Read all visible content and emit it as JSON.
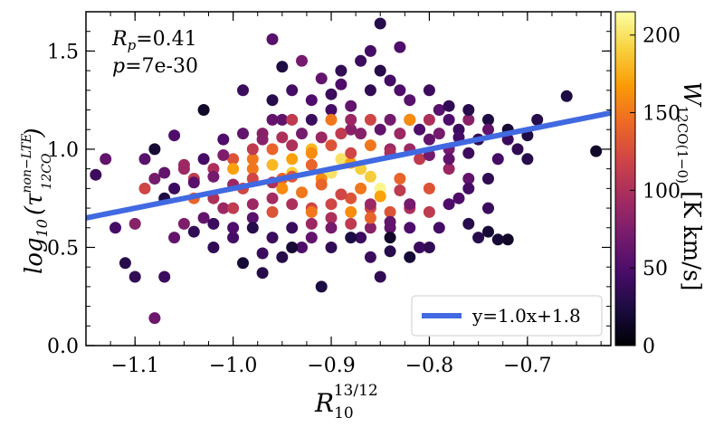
{
  "chart_data": {
    "type": "scatter",
    "xlabel": "R_10^{13/12}",
    "xlabel_main": "R",
    "xlabel_sub": "10",
    "xlabel_sup": "13/12",
    "ylabel": "log10(tau_12CO^non-LTE)",
    "ylabel_prefix": "log",
    "ylabel_prefix_sub": "10",
    "ylabel_tau": "τ",
    "ylabel_sup": "non−LTE",
    "ylabel_sub": "12CO",
    "xlim": [
      -1.15,
      -0.615
    ],
    "ylim": [
      0.0,
      1.7
    ],
    "xticks": [
      -1.1,
      -1.0,
      -0.9,
      -0.8,
      -0.7
    ],
    "xtick_labels": [
      "−1.1",
      "−1.0",
      "−0.9",
      "−0.8",
      "−0.7"
    ],
    "yticks": [
      0.0,
      0.5,
      1.0,
      1.5
    ],
    "ytick_labels": [
      "0.0",
      "0.5",
      "1.0",
      "1.5"
    ],
    "stats": {
      "rp_label": "R",
      "rp_sub": "p",
      "rp_value": "=0.41",
      "p_label": "p",
      "p_value": "=7e-30"
    },
    "fit": {
      "slope": 1.0,
      "intercept": 1.8,
      "label": "y=1.0x+1.8",
      "color": "#4169e1"
    },
    "colorbar": {
      "label_main": "W",
      "label_sub": "12CO(1−0)",
      "label_unit": "[K km/s]",
      "range": [
        0,
        215
      ],
      "ticks": [
        0,
        50,
        100,
        150,
        200
      ],
      "tick_labels": [
        "0",
        "50",
        "100",
        "150",
        "200"
      ],
      "colormap": [
        "#000004",
        "#1b0c41",
        "#4a0c6b",
        "#781c6d",
        "#a52c60",
        "#cf4446",
        "#ed6925",
        "#fb9b06",
        "#f7d13d",
        "#fcffa4"
      ]
    },
    "points": [
      [
        -1.14,
        0.87,
        40
      ],
      [
        -1.13,
        0.95,
        60
      ],
      [
        -1.12,
        0.6,
        45
      ],
      [
        -1.11,
        0.42,
        30
      ],
      [
        -1.1,
        0.35,
        35
      ],
      [
        -1.1,
        0.62,
        80
      ],
      [
        -1.09,
        0.95,
        55
      ],
      [
        -1.08,
        0.14,
        65
      ],
      [
        -1.09,
        0.8,
        120
      ],
      [
        -1.08,
        0.85,
        70
      ],
      [
        -1.08,
        1.0,
        20
      ],
      [
        -1.07,
        0.75,
        25
      ],
      [
        -1.07,
        0.35,
        40
      ],
      [
        -1.06,
        0.55,
        60
      ],
      [
        -1.06,
        1.07,
        50
      ],
      [
        -1.05,
        0.9,
        90
      ],
      [
        -1.05,
        0.62,
        75
      ],
      [
        -1.04,
        0.85,
        110
      ],
      [
        -1.04,
        0.75,
        140
      ],
      [
        -1.03,
        0.65,
        60
      ],
      [
        -1.03,
        1.2,
        15
      ],
      [
        -1.02,
        0.5,
        35
      ],
      [
        -1.02,
        0.9,
        100
      ],
      [
        -1.01,
        0.7,
        90
      ],
      [
        -1.01,
        1.05,
        50
      ],
      [
        -1.0,
        0.95,
        130
      ],
      [
        -1.0,
        0.55,
        45
      ],
      [
        -0.99,
        0.8,
        120
      ],
      [
        -0.99,
        1.3,
        40
      ],
      [
        -0.98,
        0.65,
        55
      ],
      [
        -0.98,
        0.9,
        150
      ],
      [
        -0.97,
        0.37,
        30
      ],
      [
        -0.97,
        1.05,
        80
      ],
      [
        -0.96,
        1.56,
        55
      ],
      [
        -0.96,
        0.75,
        95
      ],
      [
        -0.95,
        0.85,
        140
      ],
      [
        -0.95,
        1.15,
        60
      ],
      [
        -0.94,
        0.6,
        40
      ],
      [
        -0.94,
        0.95,
        170
      ],
      [
        -0.93,
        0.5,
        50
      ],
      [
        -0.93,
        1.45,
        70
      ],
      [
        -0.92,
        0.7,
        120
      ],
      [
        -0.92,
        1.0,
        180
      ],
      [
        -0.91,
        0.3,
        25
      ],
      [
        -0.91,
        0.85,
        160
      ],
      [
        -0.9,
        1.2,
        45
      ],
      [
        -0.9,
        0.65,
        100
      ],
      [
        -0.89,
        0.95,
        200
      ],
      [
        -0.89,
        1.4,
        35
      ],
      [
        -0.88,
        0.75,
        130
      ],
      [
        -0.88,
        1.1,
        80
      ],
      [
        -0.87,
        0.55,
        40
      ],
      [
        -0.87,
        0.9,
        190
      ],
      [
        -0.86,
        1.5,
        45
      ],
      [
        -0.86,
        0.7,
        120
      ],
      [
        -0.85,
        0.8,
        210
      ],
      [
        -0.85,
        1.64,
        30
      ],
      [
        -0.85,
        0.35,
        35
      ],
      [
        -0.84,
        1.0,
        90
      ],
      [
        -0.84,
        0.6,
        60
      ],
      [
        -0.83,
        1.3,
        50
      ],
      [
        -0.83,
        0.85,
        140
      ],
      [
        -0.82,
        0.7,
        100
      ],
      [
        -0.82,
        1.15,
        70
      ],
      [
        -0.81,
        0.95,
        110
      ],
      [
        -0.81,
        0.5,
        40
      ],
      [
        -0.8,
        1.05,
        60
      ],
      [
        -0.8,
        0.8,
        130
      ],
      [
        -0.79,
        0.6,
        45
      ],
      [
        -0.79,
        1.2,
        55
      ],
      [
        -0.78,
        0.9,
        90
      ],
      [
        -0.78,
        1.0,
        70
      ],
      [
        -0.77,
        0.75,
        50
      ],
      [
        -0.77,
        1.1,
        40
      ],
      [
        -0.76,
        0.85,
        60
      ],
      [
        -0.75,
        1.05,
        35
      ],
      [
        -0.75,
        0.55,
        30
      ],
      [
        -0.74,
        0.7,
        40
      ],
      [
        -0.74,
        1.15,
        25
      ],
      [
        -0.73,
        0.95,
        45
      ],
      [
        -0.72,
        1.1,
        20
      ],
      [
        -0.71,
        1.0,
        35
      ],
      [
        -0.7,
        1.07,
        25
      ],
      [
        -0.69,
        1.15,
        30
      ],
      [
        -0.66,
        1.27,
        25
      ],
      [
        -0.63,
        0.99,
        15
      ],
      [
        -0.98,
        0.6,
        30
      ],
      [
        -0.96,
        0.55,
        40
      ],
      [
        -0.94,
        0.5,
        20
      ],
      [
        -0.92,
        0.55,
        60
      ],
      [
        -0.9,
        0.5,
        35
      ],
      [
        -0.88,
        0.55,
        25
      ],
      [
        -0.86,
        0.6,
        80
      ],
      [
        -0.84,
        0.55,
        15
      ],
      [
        -0.96,
        1.15,
        60
      ],
      [
        -0.94,
        1.15,
        110
      ],
      [
        -0.92,
        1.15,
        40
      ],
      [
        -0.9,
        1.15,
        150
      ],
      [
        -0.88,
        1.15,
        90
      ],
      [
        -0.86,
        1.15,
        120
      ],
      [
        -0.84,
        1.15,
        70
      ],
      [
        -0.82,
        1.15,
        160
      ],
      [
        -0.8,
        1.15,
        100
      ],
      [
        -0.78,
        1.15,
        50
      ],
      [
        -0.76,
        1.15,
        80
      ],
      [
        -0.74,
        1.1,
        60
      ],
      [
        -0.72,
        1.05,
        40
      ],
      [
        -1.0,
        0.9,
        170
      ],
      [
        -0.98,
        0.95,
        150
      ],
      [
        -0.96,
        0.92,
        180
      ],
      [
        -0.94,
        0.88,
        190
      ],
      [
        -0.92,
        0.92,
        140
      ],
      [
        -0.9,
        0.88,
        200
      ],
      [
        -0.88,
        0.93,
        170
      ],
      [
        -0.86,
        0.86,
        190
      ],
      [
        -0.95,
        0.8,
        160
      ],
      [
        -0.93,
        0.78,
        150
      ],
      [
        -0.91,
        0.82,
        140
      ],
      [
        -0.89,
        0.77,
        120
      ],
      [
        -0.87,
        0.8,
        150
      ],
      [
        -0.85,
        0.76,
        170
      ],
      [
        -0.83,
        0.79,
        110
      ],
      [
        -1.02,
        0.75,
        100
      ],
      [
        -1.0,
        0.7,
        110
      ],
      [
        -0.98,
        0.72,
        90
      ],
      [
        -0.96,
        0.68,
        130
      ],
      [
        -0.94,
        0.72,
        100
      ],
      [
        -0.92,
        0.68,
        150
      ],
      [
        -0.9,
        0.72,
        120
      ],
      [
        -0.88,
        0.68,
        160
      ],
      [
        -0.86,
        0.72,
        90
      ],
      [
        -0.84,
        0.68,
        130
      ],
      [
        -0.82,
        0.72,
        70
      ],
      [
        -0.8,
        0.68,
        110
      ],
      [
        -0.78,
        0.72,
        50
      ],
      [
        -1.06,
        0.8,
        40
      ],
      [
        -1.04,
        0.83,
        55
      ],
      [
        -1.02,
        0.86,
        70
      ],
      [
        -1.0,
        0.82,
        90
      ],
      [
        -0.98,
        0.85,
        120
      ],
      [
        -0.96,
        0.83,
        100
      ],
      [
        -0.94,
        0.86,
        130
      ],
      [
        -0.92,
        0.62,
        90
      ],
      [
        -0.9,
        0.6,
        70
      ],
      [
        -0.88,
        0.62,
        110
      ],
      [
        -0.86,
        0.65,
        140
      ],
      [
        -0.84,
        0.63,
        60
      ],
      [
        -0.82,
        0.6,
        50
      ],
      [
        -0.98,
        1.0,
        110
      ],
      [
        -0.96,
        1.0,
        140
      ],
      [
        -0.94,
        1.02,
        100
      ],
      [
        -0.92,
        0.98,
        160
      ],
      [
        -0.9,
        1.02,
        130
      ],
      [
        -0.88,
        0.98,
        120
      ],
      [
        -0.86,
        1.02,
        150
      ],
      [
        -0.84,
        0.98,
        100
      ],
      [
        -0.82,
        1.0,
        90
      ],
      [
        -0.8,
        0.97,
        70
      ],
      [
        -0.78,
        0.95,
        60
      ],
      [
        -0.76,
        0.98,
        40
      ],
      [
        -0.87,
        1.08,
        80
      ],
      [
        -0.85,
        1.1,
        60
      ],
      [
        -0.83,
        1.08,
        90
      ],
      [
        -0.81,
        1.1,
        50
      ],
      [
        -0.79,
        1.08,
        70
      ],
      [
        -0.77,
        1.06,
        45
      ],
      [
        -0.99,
        1.08,
        60
      ],
      [
        -0.97,
        1.08,
        80
      ],
      [
        -0.95,
        1.06,
        100
      ],
      [
        -0.93,
        1.08,
        70
      ],
      [
        -0.91,
        1.06,
        90
      ],
      [
        -0.89,
        1.08,
        110
      ],
      [
        -0.85,
        1.4,
        30
      ],
      [
        -0.84,
        1.35,
        45
      ],
      [
        -0.82,
        1.25,
        55
      ],
      [
        -0.8,
        1.3,
        40
      ],
      [
        -0.78,
        1.22,
        35
      ],
      [
        -0.76,
        1.2,
        30
      ],
      [
        -0.92,
        1.25,
        50
      ],
      [
        -0.9,
        1.28,
        40
      ],
      [
        -0.88,
        1.22,
        60
      ],
      [
        -0.86,
        1.3,
        35
      ],
      [
        -0.94,
        1.3,
        45
      ],
      [
        -0.96,
        1.25,
        30
      ],
      [
        -1.03,
        0.95,
        45
      ],
      [
        -1.01,
        0.97,
        75
      ],
      [
        -1.05,
        0.92,
        90
      ],
      [
        -1.07,
        0.88,
        60
      ],
      [
        -1.0,
        0.6,
        50
      ],
      [
        -1.02,
        0.62,
        40
      ],
      [
        -1.04,
        0.58,
        35
      ],
      [
        -0.97,
        0.47,
        40
      ],
      [
        -0.95,
        0.45,
        30
      ],
      [
        -0.99,
        0.42,
        20
      ],
      [
        -0.86,
        0.45,
        40
      ],
      [
        -0.84,
        0.48,
        30
      ],
      [
        -0.82,
        0.45,
        20
      ],
      [
        -0.8,
        0.5,
        35
      ],
      [
        -0.76,
        0.62,
        30
      ],
      [
        -0.74,
        0.58,
        20
      ],
      [
        -0.72,
        0.54,
        15
      ],
      [
        -0.73,
        0.54,
        20
      ],
      [
        -0.7,
        0.95,
        30
      ],
      [
        -0.76,
        0.8,
        45
      ],
      [
        -0.74,
        0.85,
        35
      ],
      [
        -0.91,
        1.36,
        60
      ],
      [
        -0.89,
        1.33,
        50
      ],
      [
        -0.87,
        1.45,
        40
      ],
      [
        -0.83,
        1.52,
        50
      ],
      [
        -0.95,
        1.42,
        25
      ]
    ]
  }
}
